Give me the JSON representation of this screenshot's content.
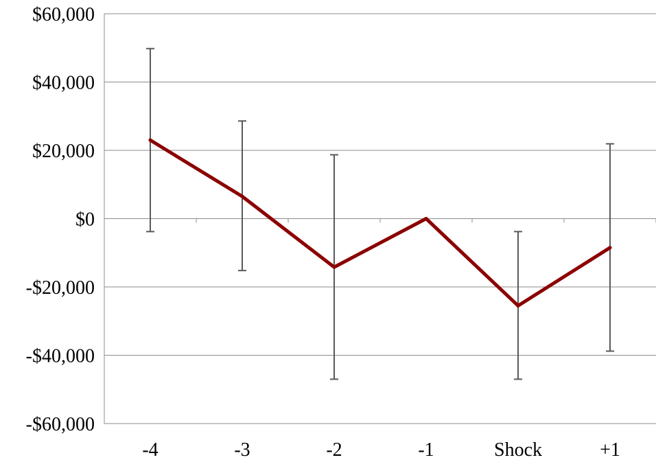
{
  "chart_data": {
    "type": "line",
    "title": "",
    "xlabel": "",
    "ylabel": "",
    "categories": [
      "-4",
      "-3",
      "-2",
      "-1",
      "Shock",
      "+1"
    ],
    "series": [
      {
        "values": [
          23000,
          6500,
          -14200,
          0,
          -25500,
          -8500
        ],
        "error_low": [
          -3800,
          -15200,
          -47000,
          0,
          -47000,
          -38800
        ],
        "error_high": [
          49800,
          28600,
          18700,
          0,
          -3800,
          21900
        ],
        "color": "#8b0000"
      }
    ],
    "ylim": [
      -60000,
      60000
    ],
    "yticks": [
      60000,
      40000,
      20000,
      0,
      -20000,
      -40000,
      -60000
    ],
    "ytick_labels": [
      "$60,000",
      "$40,000",
      "$20,000",
      "$0",
      "-$20,000",
      "-$40,000",
      "-$60,000"
    ],
    "grid": true,
    "legend": "none"
  }
}
